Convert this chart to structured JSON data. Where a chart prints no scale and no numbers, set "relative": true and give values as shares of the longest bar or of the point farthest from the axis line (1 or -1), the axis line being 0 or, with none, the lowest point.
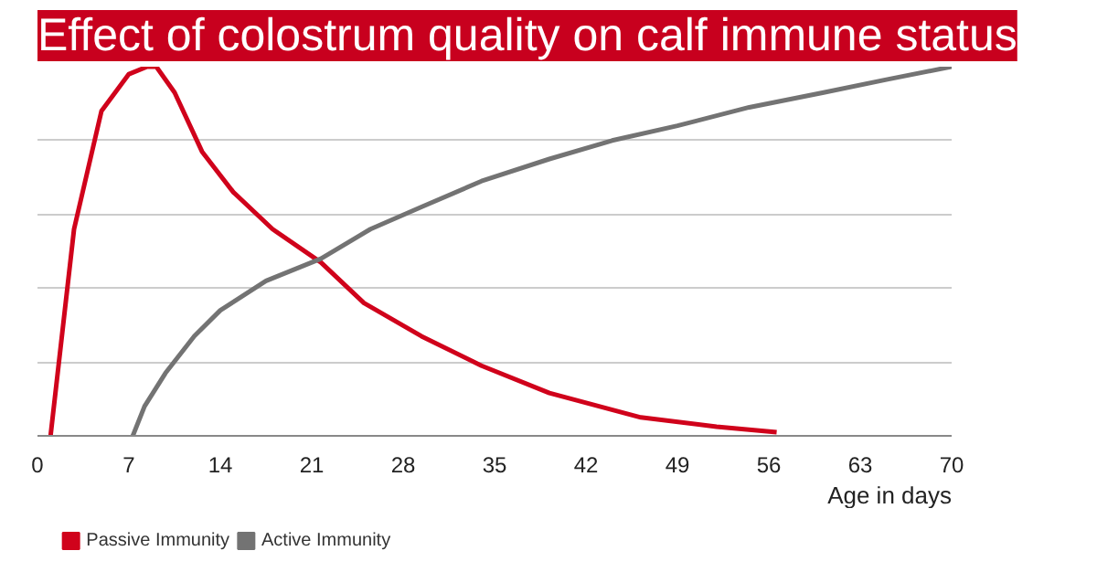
{
  "chart_data": {
    "type": "line",
    "title": "Effect of colostrum quality on calf immune status",
    "xlabel": "Age in days",
    "relative": true,
    "xlim": [
      0,
      70
    ],
    "xticks": [
      0,
      7,
      14,
      21,
      28,
      35,
      42,
      49,
      56,
      63,
      70
    ],
    "grid": "y",
    "legend": "bottom left",
    "tick_labels": "x",
    "line_style": "solid",
    "marker": "none",
    "series": [
      {
        "name": "Passive Immunity",
        "color": "#d0021b",
        "x": [
          1,
          2.8,
          4.9,
          7,
          8.4,
          9.1,
          10.5,
          12.6,
          15,
          18,
          21.7,
          25,
          29.4,
          34,
          39.2,
          46.2,
          52,
          56.6
        ],
        "values": [
          0,
          0.56,
          0.88,
          0.98,
          1,
          1,
          0.93,
          0.77,
          0.66,
          0.56,
          0.47,
          0.36,
          0.27,
          0.19,
          0.116,
          0.05,
          0.025,
          0.01
        ]
      },
      {
        "name": "Active Immunity",
        "color": "#737373",
        "x": [
          7.3,
          8.2,
          9.8,
          12,
          14,
          17.5,
          21.7,
          25.5,
          29.4,
          34,
          39.2,
          44,
          49,
          54.5,
          60.2,
          65,
          70
        ],
        "values": [
          0,
          0.08,
          0.17,
          0.27,
          0.34,
          0.42,
          0.48,
          0.56,
          0.62,
          0.69,
          0.75,
          0.8,
          0.84,
          0.89,
          0.93,
          0.965,
          1
        ]
      }
    ]
  }
}
